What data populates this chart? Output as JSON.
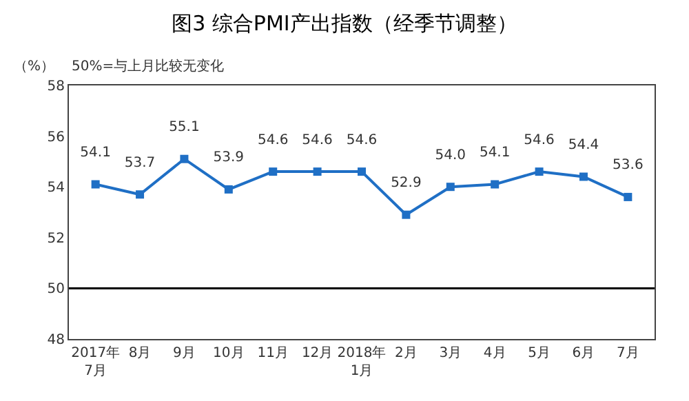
{
  "chart_data": {
    "type": "line",
    "title": "图3 综合PMI产出指数（经季节调整）",
    "ylabel": "（%）",
    "annotations": [
      "50%=与上月比较无变化"
    ],
    "categories": [
      "2017年\n7月",
      "8月",
      "9月",
      "10月",
      "11月",
      "12月",
      "2018年\n1月",
      "2月",
      "3月",
      "4月",
      "5月",
      "6月",
      "7月"
    ],
    "series": [
      {
        "color": "#1f6fc5",
        "values": [
          54.1,
          53.7,
          55.1,
          53.9,
          54.6,
          54.6,
          54.6,
          52.9,
          54.0,
          54.1,
          54.6,
          54.4,
          53.6
        ],
        "value_labels": [
          "54.1",
          "53.7",
          "55.1",
          "53.9",
          "54.6",
          "54.6",
          "54.6",
          "52.9",
          "54.0",
          "54.1",
          "54.6",
          "54.4",
          "53.6"
        ]
      }
    ],
    "ylim": [
      48,
      58
    ],
    "yticks": [
      48,
      50,
      52,
      54,
      56,
      58
    ],
    "grid": false,
    "marker": "square",
    "line_style": "solid",
    "ref_lines": [
      {
        "axis": "y",
        "value": 50,
        "color": "#000000"
      }
    ]
  }
}
